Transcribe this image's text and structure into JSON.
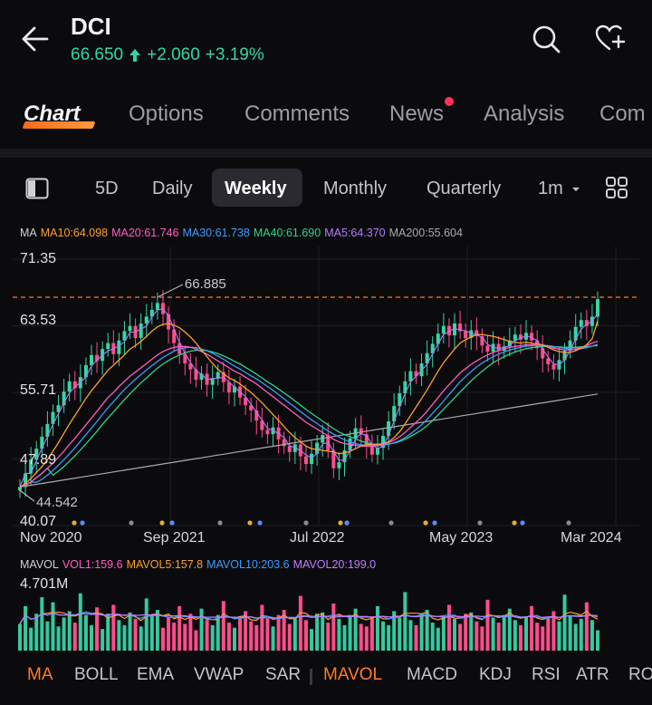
{
  "header": {
    "ticker": "DCI",
    "price": "66.650",
    "change": "+2.060",
    "change_pct": "+3.19%",
    "price_color": "#35d6a2"
  },
  "tabs": [
    {
      "label": "Chart",
      "active": true
    },
    {
      "label": "Options"
    },
    {
      "label": "Comments"
    },
    {
      "label": "News",
      "badge": true
    },
    {
      "label": "Analysis"
    },
    {
      "label": "Com"
    }
  ],
  "periods": {
    "items": [
      "5D",
      "Daily",
      "Weekly",
      "Monthly",
      "Quarterly",
      "1m"
    ],
    "selected": "Weekly",
    "dropdown_icon": "caret-down-icon"
  },
  "ma_legend": {
    "label": "MA",
    "items": [
      {
        "text": "MA10:64.098",
        "color": "#ff9f2e"
      },
      {
        "text": "MA20:61.746",
        "color": "#ff5cc0"
      },
      {
        "text": "MA30:61.738",
        "color": "#3d9bff"
      },
      {
        "text": "MA40:61.690",
        "color": "#2ed48a"
      },
      {
        "text": "MA5:64.370",
        "color": "#b47cff"
      },
      {
        "text": "MA200:55.604",
        "color": "#a8a8b0"
      }
    ]
  },
  "chart_data": {
    "type": "candlestick",
    "y_ticks": [
      "71.35",
      "63.53",
      "55.71",
      "47.89",
      "40.07"
    ],
    "ylim": [
      40.07,
      71.35
    ],
    "x_ticks": [
      "Nov 2020",
      "Sep 2021",
      "Jul 2022",
      "May 2023",
      "Mar 2024"
    ],
    "high_annotation": "66.885",
    "low_annotation": "44.542",
    "reference_line": 66.885,
    "colors": {
      "up": "#35d6a2",
      "down": "#ff4d8a"
    },
    "closes": [
      44.6,
      46.2,
      47.8,
      49.1,
      50.5,
      52.0,
      53.4,
      54.2,
      55.8,
      57.0,
      56.2,
      57.5,
      58.9,
      60.1,
      59.4,
      60.8,
      61.5,
      60.2,
      61.8,
      62.9,
      63.5,
      62.1,
      63.8,
      64.6,
      65.4,
      66.2,
      64.9,
      63.1,
      61.5,
      60.2,
      59.1,
      58.4,
      57.2,
      57.9,
      56.6,
      57.4,
      58.1,
      56.9,
      55.7,
      56.4,
      55.1,
      54.2,
      53.6,
      52.4,
      51.3,
      50.8,
      51.6,
      50.2,
      49.4,
      48.7,
      49.6,
      48.2,
      47.3,
      48.5,
      49.8,
      50.7,
      48.9,
      46.8,
      47.5,
      48.9,
      50.3,
      51.5,
      50.8,
      49.6,
      48.4,
      49.2,
      50.6,
      52.3,
      54.1,
      55.6,
      57.0,
      58.2,
      57.6,
      59.1,
      60.3,
      61.4,
      62.6,
      63.5,
      62.4,
      63.8,
      62.9,
      62.1,
      63.0,
      62.3,
      61.2,
      60.5,
      61.4,
      60.6,
      61.1,
      61.8,
      62.5,
      61.9,
      62.7,
      61.8,
      60.9,
      59.7,
      59.0,
      58.4,
      59.5,
      60.6,
      61.8,
      63.4,
      64.2,
      63.5,
      64.6,
      66.65
    ],
    "ma10": [
      44.6,
      45.0,
      45.6,
      46.3,
      47.0,
      47.8,
      48.8,
      49.8,
      50.9,
      52.0,
      53.0,
      54.0,
      55.0,
      55.9,
      56.7,
      57.5,
      58.3,
      58.9,
      59.5,
      60.1,
      60.8,
      61.2,
      61.7,
      62.3,
      62.9,
      63.4,
      63.7,
      63.8,
      63.6,
      63.3,
      62.8,
      62.2,
      61.5,
      60.7,
      59.9,
      59.1,
      58.4,
      57.9,
      57.4,
      57.1,
      56.7,
      56.2,
      55.7,
      55.1,
      54.5,
      53.8,
      53.1,
      52.4,
      51.7,
      51.0,
      50.4,
      49.9,
      49.4,
      49.1,
      49.0,
      48.9,
      48.8,
      48.7,
      48.5,
      48.6,
      48.8,
      49.1,
      49.4,
      49.6,
      49.6,
      49.6,
      49.7,
      49.9,
      50.4,
      51.1,
      52.0,
      53.0,
      54.0,
      55.0,
      56.0,
      57.1,
      58.2,
      59.2,
      60.0,
      60.8,
      61.5,
      61.9,
      62.2,
      62.5,
      62.5,
      62.4,
      62.3,
      62.1,
      61.9,
      61.7,
      61.6,
      61.5,
      61.6,
      61.5,
      61.4,
      61.3,
      61.0,
      60.7,
      60.5,
      60.4,
      60.4,
      60.6,
      60.9,
      61.3,
      62.0,
      64.1
    ],
    "ma20": [
      44.6,
      44.8,
      45.2,
      45.7,
      46.2,
      46.8,
      47.4,
      48.1,
      48.8,
      49.6,
      50.3,
      51.1,
      51.9,
      52.7,
      53.5,
      54.3,
      55.1,
      55.7,
      56.4,
      57.0,
      57.6,
      58.1,
      58.6,
      59.1,
      59.6,
      60.1,
      60.5,
      60.8,
      61.0,
      61.1,
      61.1,
      61.0,
      60.8,
      60.5,
      60.2,
      59.8,
      59.4,
      59.0,
      58.6,
      58.2,
      57.9,
      57.5,
      57.1,
      56.7,
      56.2,
      55.7,
      55.2,
      54.7,
      54.2,
      53.7,
      53.2,
      52.7,
      52.2,
      51.8,
      51.4,
      51.0,
      50.6,
      50.2,
      49.9,
      49.7,
      49.6,
      49.5,
      49.4,
      49.4,
      49.4,
      49.5,
      49.6,
      49.8,
      50.1,
      50.5,
      51.0,
      51.6,
      52.2,
      52.8,
      53.5,
      54.3,
      55.1,
      55.9,
      56.6,
      57.3,
      58.0,
      58.5,
      59.0,
      59.4,
      59.8,
      60.1,
      60.4,
      60.6,
      60.8,
      61.0,
      61.1,
      61.2,
      61.3,
      61.3,
      61.3,
      61.2,
      61.1,
      60.9,
      60.8,
      60.7,
      60.7,
      60.8,
      61.0,
      61.2,
      61.5,
      61.7
    ]
  },
  "volume": {
    "legend": [
      {
        "text": "MAVOL",
        "color": "#d0d0d6"
      },
      {
        "text": "VOL1:159.6",
        "color": "#ff5cc0"
      },
      {
        "text": "MAVOL5:157.8",
        "color": "#ff9f2e"
      },
      {
        "text": "MAVOL10:203.6",
        "color": "#3d9bff"
      },
      {
        "text": "MAVOL20:199.0",
        "color": "#c07cff"
      }
    ],
    "max_label": "4.701M",
    "values": [
      2.1,
      3.5,
      1.8,
      2.9,
      4.2,
      2.3,
      3.8,
      1.9,
      2.6,
      3.1,
      2.2,
      4.5,
      2.8,
      2.0,
      3.4,
      1.7,
      2.9,
      3.6,
      2.4,
      2.0,
      3.0,
      2.5,
      1.9,
      4.1,
      2.7,
      3.2,
      1.8,
      2.6,
      2.2,
      3.5,
      2.1,
      2.9,
      1.6,
      3.3,
      2.4,
      2.0,
      2.8,
      3.9,
      2.2,
      1.8,
      2.7,
      3.1,
      2.3,
      2.0,
      3.6,
      2.5,
      1.9,
      2.8,
      3.2,
      2.1,
      2.6,
      4.3,
      2.4,
      1.7,
      2.9,
      3.0,
      2.2,
      3.7,
      2.5,
      2.0,
      2.8,
      3.3,
      2.1,
      1.9,
      2.7,
      3.5,
      2.3,
      2.0,
      3.1,
      2.6,
      4.6,
      2.4,
      2.0,
      2.9,
      3.2,
      2.2,
      1.8,
      2.7,
      3.6,
      2.5,
      2.1,
      2.9,
      3.0,
      2.3,
      1.9,
      4.0,
      2.6,
      2.2,
      2.8,
      3.3,
      2.4,
      2.0,
      2.7,
      3.5,
      2.2,
      1.9,
      2.6,
      3.1,
      2.3,
      4.4,
      2.7,
      2.1,
      2.5,
      3.8,
      2.4,
      1.6
    ]
  },
  "indicators": {
    "items": [
      "MA",
      "BOLL",
      "EMA",
      "VWAP",
      "SAR",
      "MAVOL",
      "MACD",
      "KDJ",
      "RSI",
      "ATR",
      "RO"
    ],
    "active": [
      "MA",
      "MAVOL"
    ]
  }
}
